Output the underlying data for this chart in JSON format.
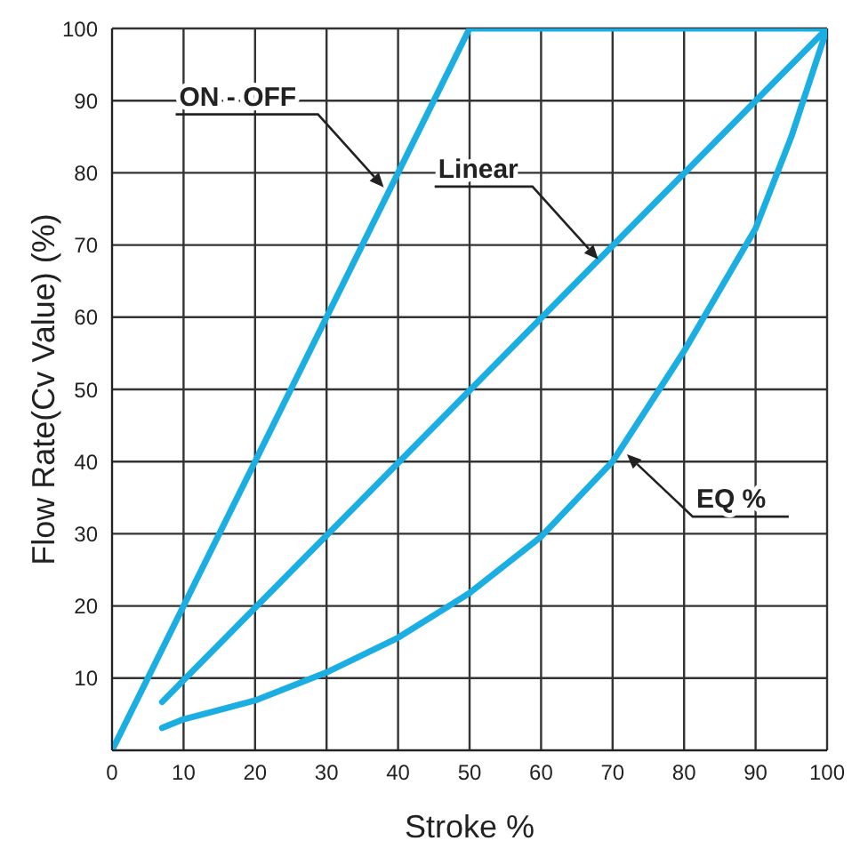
{
  "chart_data": {
    "type": "line",
    "xlabel": "Stroke %",
    "ylabel": "Flow Rate(Cv Value)  (%)",
    "xlim": [
      0,
      100
    ],
    "ylim": [
      0,
      100
    ],
    "xticks": [
      0,
      10,
      20,
      30,
      40,
      50,
      60,
      70,
      80,
      90,
      100
    ],
    "yticks": [
      10,
      20,
      30,
      40,
      50,
      60,
      70,
      80,
      90,
      100
    ],
    "grid": true,
    "marker": "none",
    "line_style": "solid",
    "series": [
      {
        "color": "#1aaee3",
        "x": [
          0,
          50,
          100
        ],
        "values": [
          0,
          100,
          100
        ]
      },
      {
        "color": "#1aaee3",
        "x": [
          7,
          100
        ],
        "values": [
          6.7,
          100
        ]
      },
      {
        "color": "#1aaee3",
        "x": [
          7,
          10,
          20,
          30,
          40,
          50,
          60,
          70,
          80,
          90,
          95,
          100
        ],
        "values": [
          3.1,
          4.3,
          6.9,
          10.8,
          15.6,
          21.8,
          29.6,
          40,
          55.3,
          72.3,
          85,
          100
        ]
      }
    ],
    "annotations": [
      {
        "text": "ON - OFF",
        "x": 38,
        "y": 78
      },
      {
        "text": "Linear",
        "x": 68,
        "y": 68
      },
      {
        "text": "EQ %",
        "x": 72,
        "y": 41
      }
    ]
  }
}
